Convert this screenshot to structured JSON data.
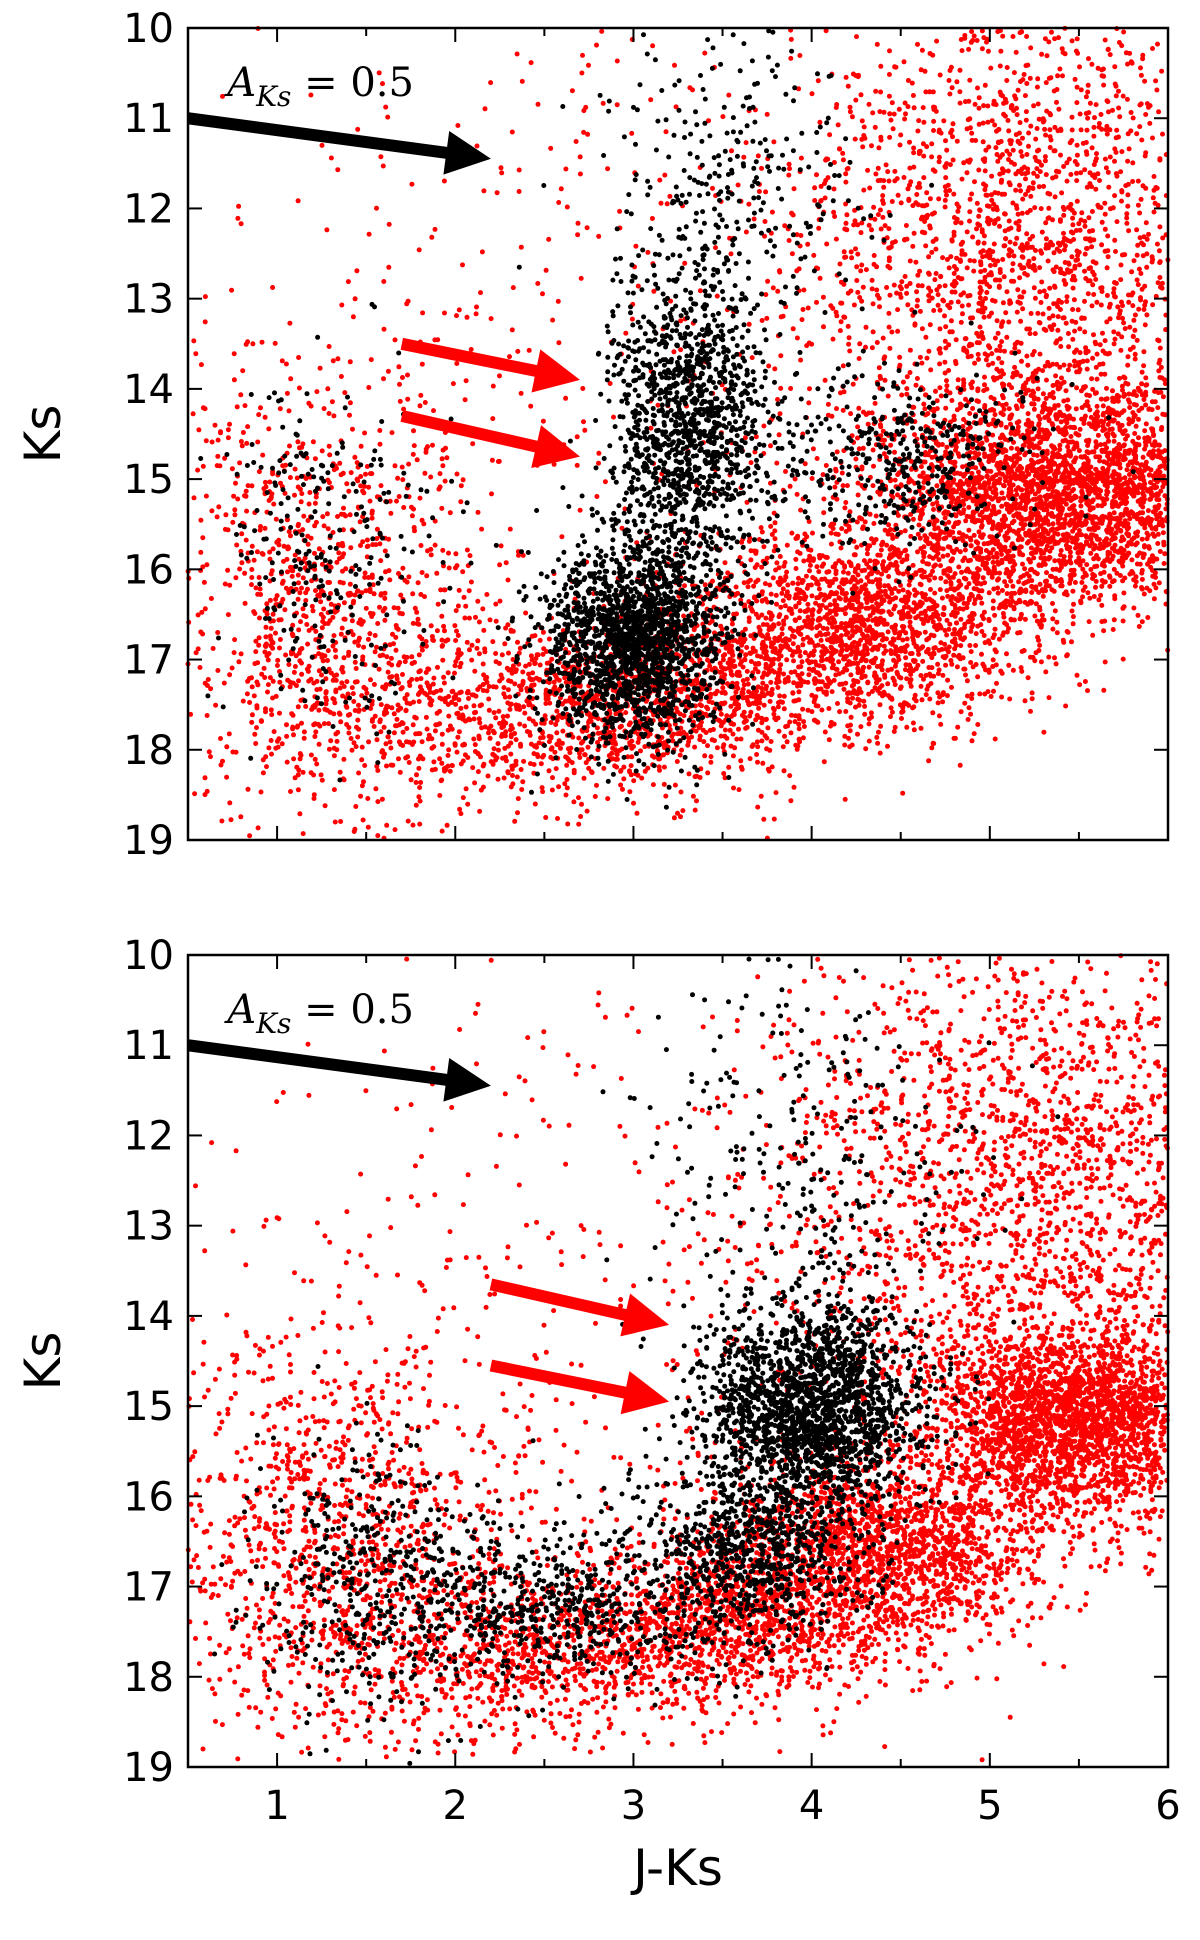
{
  "chart_data": [
    {
      "type": "scatter",
      "panel": "top",
      "xlabel": "",
      "ylabel": "Ks",
      "xlim": [
        0.5,
        6
      ],
      "ylim": [
        19,
        10
      ],
      "y_inverted": true,
      "x_ticks": [
        1,
        2,
        3,
        4,
        5,
        6
      ],
      "x_tick_labels": [
        "",
        "",
        "",
        "",
        "",
        ""
      ],
      "y_ticks": [
        10,
        11,
        12,
        13,
        14,
        15,
        16,
        17,
        18,
        19
      ],
      "y_tick_labels": [
        "10",
        "11",
        "12",
        "13",
        "14",
        "15",
        "16",
        "17",
        "18",
        "19"
      ],
      "grid": false,
      "series": [
        {
          "color": "#ff0000",
          "clusters": [
            {
              "cx": 1.25,
              "cy": 16.3,
              "sx": 0.45,
              "sy": 1.3,
              "n": 1000
            },
            {
              "cx": 2.2,
              "cy": 17.6,
              "sx": 0.6,
              "sy": 0.55,
              "n": 700
            },
            {
              "cx": 3.2,
              "cy": 17.5,
              "sx": 0.5,
              "sy": 0.45,
              "n": 900
            },
            {
              "cx": 4.3,
              "cy": 16.6,
              "sx": 0.5,
              "sy": 0.55,
              "n": 1700
            },
            {
              "cx": 5.4,
              "cy": 15.2,
              "sx": 0.5,
              "sy": 0.6,
              "n": 2800
            },
            {
              "cx": 5.2,
              "cy": 12.3,
              "sx": 0.7,
              "sy": 1.5,
              "n": 2200
            },
            {
              "cx": 3.0,
              "cy": 13.5,
              "sx": 1.3,
              "sy": 2.2,
              "n": 500
            }
          ]
        },
        {
          "color": "#000000",
          "clusters": [
            {
              "cx": 3.0,
              "cy": 16.8,
              "sx": 0.25,
              "sy": 0.55,
              "n": 1800
            },
            {
              "cx": 3.3,
              "cy": 14.5,
              "sx": 0.22,
              "sy": 0.9,
              "n": 1300
            },
            {
              "cx": 3.6,
              "cy": 11.8,
              "sx": 0.35,
              "sy": 1.2,
              "n": 300
            },
            {
              "cx": 1.3,
              "cy": 15.7,
              "sx": 0.3,
              "sy": 1.0,
              "n": 250
            },
            {
              "cx": 4.5,
              "cy": 14.8,
              "sx": 0.4,
              "sy": 0.5,
              "n": 400
            }
          ]
        }
      ],
      "annotations": [
        {
          "text_main": "A",
          "text_sub": "Ks",
          "text_rest": " = 0.5",
          "x": 0.72,
          "y": 10.6
        },
        {
          "arrow": "black",
          "from": [
            0.5,
            11.0
          ],
          "to": [
            2.2,
            11.45
          ]
        },
        {
          "arrow": "red",
          "from": [
            1.7,
            13.5
          ],
          "to": [
            2.7,
            13.9
          ]
        },
        {
          "arrow": "red",
          "from": [
            1.7,
            14.3
          ],
          "to": [
            2.7,
            14.75
          ]
        }
      ]
    },
    {
      "type": "scatter",
      "panel": "bottom",
      "xlabel": "J-Ks",
      "ylabel": "Ks",
      "xlim": [
        0.5,
        6
      ],
      "ylim": [
        19,
        10
      ],
      "y_inverted": true,
      "x_ticks": [
        1,
        2,
        3,
        4,
        5,
        6
      ],
      "x_tick_labels": [
        "1",
        "2",
        "3",
        "4",
        "5",
        "6"
      ],
      "y_ticks": [
        10,
        11,
        12,
        13,
        14,
        15,
        16,
        17,
        18,
        19
      ],
      "y_tick_labels": [
        "10",
        "11",
        "12",
        "13",
        "14",
        "15",
        "16",
        "17",
        "18",
        "19"
      ],
      "grid": false,
      "series": [
        {
          "color": "#ff0000",
          "clusters": [
            {
              "cx": 1.35,
              "cy": 16.5,
              "sx": 0.5,
              "sy": 1.2,
              "n": 1100
            },
            {
              "cx": 2.5,
              "cy": 17.7,
              "sx": 0.6,
              "sy": 0.5,
              "n": 900
            },
            {
              "cx": 3.6,
              "cy": 17.4,
              "sx": 0.45,
              "sy": 0.45,
              "n": 900
            },
            {
              "cx": 4.4,
              "cy": 16.6,
              "sx": 0.45,
              "sy": 0.5,
              "n": 1600
            },
            {
              "cx": 5.5,
              "cy": 15.2,
              "sx": 0.45,
              "sy": 0.55,
              "n": 2600
            },
            {
              "cx": 5.3,
              "cy": 12.5,
              "sx": 0.7,
              "sy": 1.5,
              "n": 2000
            },
            {
              "cx": 3.2,
              "cy": 13.5,
              "sx": 1.3,
              "sy": 2.2,
              "n": 500
            }
          ]
        },
        {
          "color": "#000000",
          "clusters": [
            {
              "cx": 4.0,
              "cy": 15.0,
              "sx": 0.3,
              "sy": 0.55,
              "n": 1900
            },
            {
              "cx": 3.7,
              "cy": 16.6,
              "sx": 0.3,
              "sy": 0.5,
              "n": 700
            },
            {
              "cx": 2.6,
              "cy": 17.2,
              "sx": 0.6,
              "sy": 0.45,
              "n": 700
            },
            {
              "cx": 1.5,
              "cy": 16.8,
              "sx": 0.35,
              "sy": 0.8,
              "n": 350
            },
            {
              "cx": 4.0,
              "cy": 12.5,
              "sx": 0.45,
              "sy": 1.3,
              "n": 300
            }
          ]
        }
      ],
      "annotations": [
        {
          "text_main": "A",
          "text_sub": "Ks",
          "text_rest": " = 0.5",
          "x": 0.72,
          "y": 10.6
        },
        {
          "arrow": "black",
          "from": [
            0.5,
            11.0
          ],
          "to": [
            2.2,
            11.45
          ]
        },
        {
          "arrow": "red",
          "from": [
            2.2,
            13.65
          ],
          "to": [
            3.2,
            14.1
          ]
        },
        {
          "arrow": "red",
          "from": [
            2.2,
            14.55
          ],
          "to": [
            3.2,
            14.95
          ]
        }
      ]
    }
  ]
}
